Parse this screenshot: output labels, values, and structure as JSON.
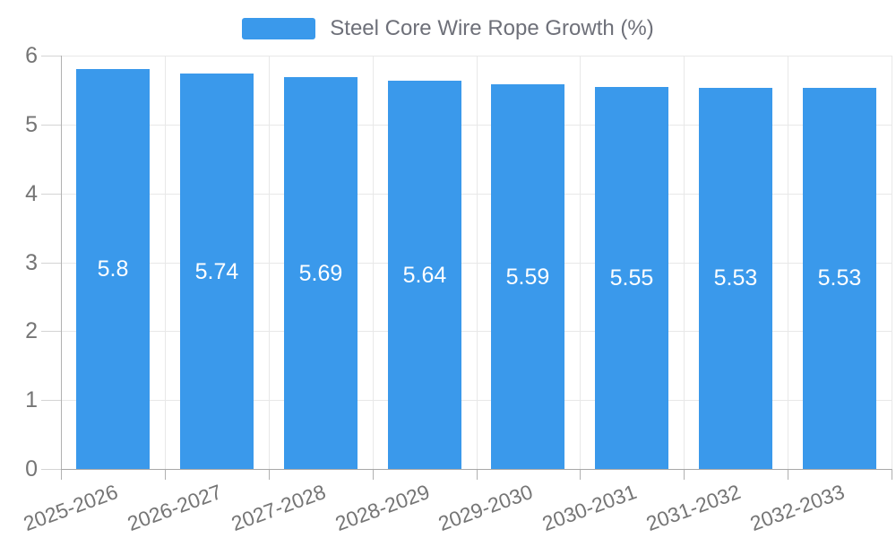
{
  "chart_data": {
    "type": "bar",
    "title": "",
    "legend_label": "Steel Core Wire Rope Growth (%)",
    "legend_position": "top-center",
    "categories": [
      "2025-2026",
      "2026-2027",
      "2027-2028",
      "2028-2029",
      "2029-2030",
      "2030-2031",
      "2031-2032",
      "2032-2033"
    ],
    "series": [
      {
        "name": "Steel Core Wire Rope Growth (%)",
        "values": [
          5.8,
          5.74,
          5.69,
          5.64,
          5.59,
          5.55,
          5.53,
          5.53
        ]
      }
    ],
    "ylim": [
      0,
      6
    ],
    "yticks": [
      0,
      1,
      2,
      3,
      4,
      5,
      6
    ],
    "grid": true,
    "x_label_rotation_deg": -20,
    "value_labels_inside_bars": true,
    "colors": {
      "bar": "#3a99eb",
      "bar_value_text": "#ffffff",
      "axis_text": "#757575",
      "legend_text": "#6e7079",
      "gridline": "#e8e8e8",
      "axis_line": "#a8a8a8"
    }
  }
}
